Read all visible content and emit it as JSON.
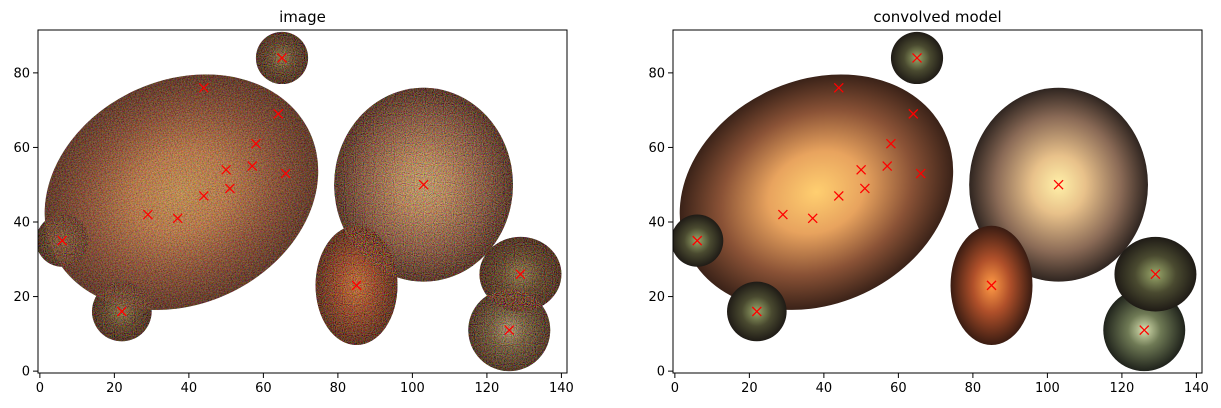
{
  "chart_data": [
    {
      "type": "scatter",
      "title": "image",
      "xlim": [
        -0.5,
        141.5
      ],
      "ylim": [
        -0.5,
        91.5
      ],
      "xticks": [
        0,
        20,
        40,
        60,
        80,
        100,
        120,
        140
      ],
      "yticks": [
        0,
        20,
        40,
        60,
        80
      ],
      "grid": false,
      "marker": "x",
      "marker_color": "#ff0000",
      "points": [
        {
          "x": 6,
          "y": 35
        },
        {
          "x": 22,
          "y": 16
        },
        {
          "x": 29,
          "y": 42
        },
        {
          "x": 37,
          "y": 41
        },
        {
          "x": 44,
          "y": 47
        },
        {
          "x": 44,
          "y": 76
        },
        {
          "x": 50,
          "y": 54
        },
        {
          "x": 51,
          "y": 49
        },
        {
          "x": 57,
          "y": 55
        },
        {
          "x": 58,
          "y": 61
        },
        {
          "x": 64,
          "y": 69
        },
        {
          "x": 66,
          "y": 53
        },
        {
          "x": 65,
          "y": 84
        },
        {
          "x": 85,
          "y": 23
        },
        {
          "x": 103,
          "y": 50
        },
        {
          "x": 126,
          "y": 11
        },
        {
          "x": 129,
          "y": 26
        }
      ]
    },
    {
      "type": "scatter",
      "title": "convolved model",
      "xlim": [
        -0.5,
        141.5
      ],
      "ylim": [
        -0.5,
        91.5
      ],
      "xticks": [
        0,
        20,
        40,
        60,
        80,
        100,
        120,
        140
      ],
      "yticks": [
        0,
        20,
        40,
        60,
        80
      ],
      "grid": false,
      "marker": "x",
      "marker_color": "#ff0000",
      "points": [
        {
          "x": 6,
          "y": 35
        },
        {
          "x": 22,
          "y": 16
        },
        {
          "x": 29,
          "y": 42
        },
        {
          "x": 37,
          "y": 41
        },
        {
          "x": 44,
          "y": 47
        },
        {
          "x": 44,
          "y": 76
        },
        {
          "x": 50,
          "y": 54
        },
        {
          "x": 51,
          "y": 49
        },
        {
          "x": 57,
          "y": 55
        },
        {
          "x": 58,
          "y": 61
        },
        {
          "x": 64,
          "y": 69
        },
        {
          "x": 66,
          "y": 53
        },
        {
          "x": 65,
          "y": 84
        },
        {
          "x": 85,
          "y": 23
        },
        {
          "x": 103,
          "y": 50
        },
        {
          "x": 126,
          "y": 11
        },
        {
          "x": 129,
          "y": 26
        }
      ]
    }
  ]
}
